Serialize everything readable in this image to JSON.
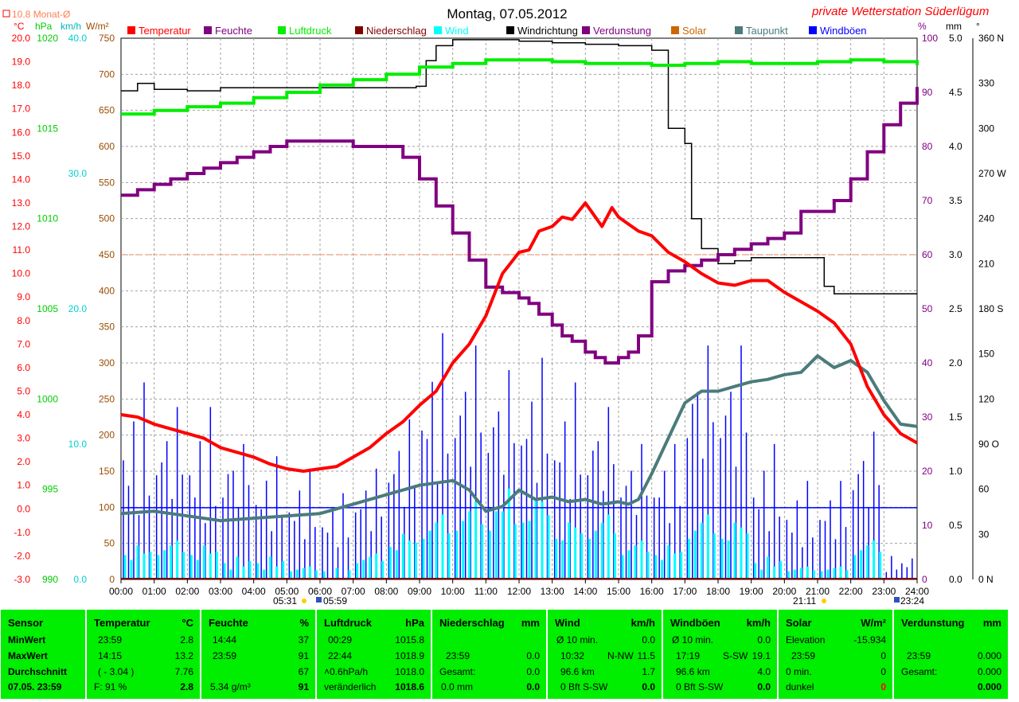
{
  "chart_data": {
    "type": "line",
    "title": "Montag, 07.05.2012",
    "station": "private Wetterstation Süderlügum",
    "monthly_avg_label": "10.8 Monat-Ø",
    "units_left": [
      "°C",
      "hPa",
      "km/h",
      "W/m²"
    ],
    "units_right": [
      "%",
      "mm",
      "°"
    ],
    "x_ticks": [
      "00:00",
      "01:00",
      "02:00",
      "03:00",
      "04:00",
      "05:00",
      "06:00",
      "07:00",
      "08:00",
      "09:00",
      "10:00",
      "11:00",
      "12:00",
      "13:00",
      "14:00",
      "15:00",
      "16:00",
      "17:00",
      "18:00",
      "19:00",
      "20:00",
      "21:00",
      "22:00",
      "23:00",
      "24:00"
    ],
    "sunrise": "05:31",
    "sunset": "21:11",
    "moonrise": "05:59",
    "moonset": "23:24",
    "axes": {
      "temp": {
        "min": -3,
        "max": 20,
        "step": 1,
        "color": "#ff0000"
      },
      "pressure": {
        "min": 990,
        "max": 1020,
        "step": 5,
        "color": "#00cc00"
      },
      "wind": {
        "min": 0,
        "max": 40,
        "step": 10,
        "color": "#00e5e5"
      },
      "solar": {
        "min": 0,
        "max": 750,
        "step": 50,
        "color": "#994c00"
      },
      "humidity": {
        "min": 0,
        "max": 100,
        "step": 10,
        "color": "#800080"
      },
      "precip": {
        "min": 0,
        "max": 5,
        "step": 0.5,
        "color": "#000000"
      },
      "direction": {
        "min": 0,
        "max": 360,
        "step": 30,
        "color": "#000000",
        "labels": {
          "0": "0 N",
          "90": "90 O",
          "180": "180 S",
          "270": "270 W",
          "360": "360 N"
        }
      }
    },
    "legend": [
      {
        "name": "Temperatur",
        "color": "#ff0000"
      },
      {
        "name": "Feuchte",
        "color": "#800080"
      },
      {
        "name": "Luftdruck",
        "color": "#00ee00"
      },
      {
        "name": "Niederschlag",
        "color": "#800000"
      },
      {
        "name": "Wind",
        "color": "#00ffff"
      },
      {
        "name": "Windrichtung",
        "color": "#000000"
      },
      {
        "name": "Verdunstung",
        "color": "#800080"
      },
      {
        "name": "Solar",
        "color": "#cc6600"
      },
      {
        "name": "Taupunkt",
        "color": "#4b7b7b"
      },
      {
        "name": "Windböen",
        "color": "#0000ff"
      }
    ],
    "monthly_avg_temp": 10.8,
    "series": [
      {
        "name": "Temperatur",
        "axis": "temp",
        "color": "#ff0000",
        "x": [
          0,
          0.5,
          1,
          1.5,
          2,
          2.5,
          3,
          3.5,
          4,
          4.5,
          5,
          5.5,
          6,
          6.5,
          7,
          7.5,
          8,
          8.5,
          9,
          9.5,
          10,
          10.5,
          11,
          11.5,
          12,
          12.3,
          12.6,
          13,
          13.3,
          13.6,
          14,
          14.2,
          14.5,
          14.8,
          15,
          15.3,
          15.6,
          16,
          16.5,
          17,
          17.5,
          18,
          18.5,
          19,
          19.5,
          20,
          20.5,
          21,
          21.5,
          22,
          22.5,
          23,
          23.5,
          24
        ],
        "values": [
          4.0,
          3.9,
          3.6,
          3.4,
          3.2,
          3.0,
          2.6,
          2.4,
          2.2,
          1.9,
          1.7,
          1.6,
          1.7,
          1.8,
          2.2,
          2.6,
          3.2,
          3.7,
          4.4,
          5.0,
          6.2,
          7.0,
          8.2,
          10.0,
          10.9,
          11.0,
          11.8,
          12.0,
          12.4,
          12.3,
          13.0,
          12.6,
          12.0,
          12.8,
          12.4,
          12.1,
          11.8,
          11.6,
          10.9,
          10.5,
          10.0,
          9.6,
          9.5,
          9.7,
          9.7,
          9.2,
          8.8,
          8.4,
          7.9,
          7.0,
          5.2,
          4.0,
          3.2,
          2.8
        ]
      },
      {
        "name": "Feuchte",
        "axis": "humidity",
        "color": "#800080",
        "x": [
          0,
          0.5,
          1,
          1.5,
          2,
          2.5,
          3,
          3.5,
          4,
          4.5,
          5,
          5.5,
          6,
          6.5,
          7,
          7.5,
          8,
          8.5,
          9,
          9.5,
          10,
          10.5,
          11,
          11.5,
          12,
          12.3,
          12.6,
          13,
          13.3,
          13.6,
          14,
          14.3,
          14.6,
          15,
          15.3,
          15.6,
          16,
          16.5,
          17,
          17.5,
          18,
          18.5,
          19,
          19.5,
          20,
          20.5,
          21,
          21.5,
          22,
          22.5,
          23,
          23.5,
          24
        ],
        "values": [
          71,
          72,
          73,
          74,
          75,
          76,
          77,
          78,
          79,
          80,
          81,
          81,
          81,
          81,
          80,
          80,
          80,
          78,
          74,
          69,
          64,
          59,
          54,
          53,
          52,
          51,
          49,
          47,
          45,
          44,
          42,
          41,
          40,
          41,
          42,
          45,
          55,
          57,
          58,
          59,
          60,
          61,
          62,
          63,
          64,
          68,
          68,
          70,
          74,
          79,
          84,
          88,
          91
        ]
      },
      {
        "name": "Luftdruck",
        "axis": "pressure",
        "color": "#00ee00",
        "x": [
          0,
          1,
          2,
          3,
          4,
          5,
          6,
          7,
          8,
          9,
          10,
          11,
          12,
          13,
          14,
          15,
          16,
          17,
          18,
          19,
          20,
          21,
          22,
          23,
          24
        ],
        "values": [
          1015.8,
          1016.0,
          1016.2,
          1016.4,
          1016.7,
          1017.0,
          1017.4,
          1017.7,
          1018.0,
          1018.4,
          1018.6,
          1018.8,
          1018.8,
          1018.7,
          1018.6,
          1018.6,
          1018.5,
          1018.6,
          1018.7,
          1018.6,
          1018.6,
          1018.7,
          1018.8,
          1018.7,
          1018.5
        ]
      },
      {
        "name": "Taupunkt",
        "axis": "temp",
        "color": "#4b7b7b",
        "x": [
          0,
          1,
          2,
          3,
          4,
          5,
          6,
          7,
          8,
          9,
          10,
          10.5,
          11,
          11.5,
          12,
          12.5,
          13,
          13.5,
          14,
          14.5,
          15,
          15.3,
          15.6,
          16,
          16.5,
          17,
          17.5,
          18,
          18.5,
          19,
          19.5,
          20,
          20.5,
          21,
          21.5,
          22,
          22.5,
          23,
          23.5,
          24
        ],
        "values": [
          -0.2,
          -0.1,
          -0.3,
          -0.5,
          -0.4,
          -0.3,
          -0.2,
          0.2,
          0.6,
          1.0,
          1.2,
          0.8,
          -0.1,
          0.1,
          0.8,
          0.4,
          0.5,
          0.3,
          0.4,
          0.2,
          0.3,
          0.2,
          0.4,
          1.5,
          3.0,
          4.5,
          5.0,
          5.0,
          5.2,
          5.4,
          5.5,
          5.7,
          5.8,
          6.5,
          6.0,
          6.3,
          5.8,
          4.6,
          3.6,
          3.5
        ]
      },
      {
        "name": "Windrichtung",
        "axis": "direction",
        "color": "#000000",
        "x": [
          0,
          0.5,
          1,
          2,
          3,
          5,
          8.9,
          9.2,
          9.5,
          10,
          11,
          12,
          13,
          14,
          15,
          16,
          16.5,
          17,
          17.2,
          17.5,
          18,
          18.5,
          19,
          20,
          21,
          21.2,
          21.5,
          22,
          23,
          24
        ],
        "values": [
          325,
          330,
          326,
          325,
          327,
          327,
          328,
          345,
          355,
          359,
          359,
          358,
          357,
          356,
          355,
          352,
          300,
          290,
          240,
          220,
          210,
          212,
          214,
          214,
          214,
          195,
          190,
          190,
          190,
          190
        ]
      },
      {
        "name": "Windböen",
        "axis": "wind",
        "color": "#0000ff",
        "x": [
          0,
          1,
          2,
          3,
          4,
          5,
          6,
          7,
          8,
          9,
          10,
          11,
          12,
          13,
          14,
          15,
          16,
          17,
          18,
          19,
          20,
          21,
          22,
          23,
          24
        ],
        "values": [
          8,
          10,
          7,
          9,
          6,
          5,
          4,
          6,
          9,
          12,
          14,
          13,
          12,
          10,
          11,
          8,
          7,
          15,
          14,
          6,
          4,
          5,
          9,
          2,
          1
        ],
        "peak_values": [
          16,
          14,
          14,
          11,
          10,
          9,
          7,
          9,
          13,
          20,
          19,
          17,
          18,
          16,
          14,
          11,
          11,
          19,
          19,
          11,
          8,
          8,
          12,
          1,
          1
        ]
      },
      {
        "name": "Wind",
        "axis": "wind",
        "color": "#00ffff",
        "x": [
          0,
          1,
          2,
          3,
          4,
          5,
          6,
          7,
          8,
          9,
          10,
          11,
          12,
          13,
          14,
          15,
          16,
          17,
          18,
          19,
          20,
          21,
          22,
          23,
          24
        ],
        "values": [
          2,
          3,
          2,
          1,
          1,
          1,
          0,
          2,
          3,
          5,
          6,
          7,
          6,
          4,
          5,
          3,
          2,
          5,
          4,
          1,
          1,
          1,
          3,
          0,
          0
        ],
        "peak_values": [
          3,
          3,
          3,
          2,
          2,
          1,
          1,
          2,
          4,
          5,
          6,
          6,
          7,
          5,
          5,
          3,
          3,
          5,
          5,
          2,
          1,
          1,
          3,
          0,
          0
        ]
      },
      {
        "name": "Durchschnitt Wind",
        "axis": "wind",
        "color": "#0000ff",
        "x": [
          0,
          24
        ],
        "values": [
          5.3,
          5.3
        ]
      }
    ]
  },
  "sensors": {
    "row_labels": [
      "Sensor",
      "MinWert",
      "MaxWert",
      "Durchschnitt",
      "07.05. 23:59"
    ],
    "temperatur": {
      "title": "Temperatur",
      "unit": "°C",
      "min": {
        "time": "23:59",
        "value": "2.8"
      },
      "max": {
        "time": "14:15",
        "value": "13.2"
      },
      "avg": {
        "note": "( - 3.04 )",
        "value": "7.76"
      },
      "current": {
        "note": "F: 91 %",
        "value": "2.8"
      }
    },
    "feuchte": {
      "title": "Feuchte",
      "unit": "%",
      "min": {
        "time": "14:44",
        "value": "37"
      },
      "max": {
        "time": "23:59",
        "value": "91"
      },
      "avg": {
        "value": "67"
      },
      "current": {
        "note": "5.34 g/m³",
        "value": "91"
      }
    },
    "luftdruck": {
      "title": "Luftdruck",
      "unit": "hPa",
      "min": {
        "time": "00:29",
        "value": "1015.8"
      },
      "max": {
        "time": "22:44",
        "value": "1018.9"
      },
      "avg": {
        "note": "˄0.6hPa/h",
        "value": "1018.0"
      },
      "current": {
        "note": "veränderlich",
        "value": "1018.6"
      }
    },
    "niederschlag": {
      "title": "Niederschlag",
      "unit": "mm",
      "max": {
        "time": "23:59",
        "value": "0.0"
      },
      "avg": {
        "note": "Gesamt:",
        "value": "0.0"
      },
      "current": {
        "note": "0.0 mm",
        "value": "0.0"
      }
    },
    "wind": {
      "title": "Wind",
      "unit": "km/h",
      "min": {
        "time": "Ø 10 min.",
        "value": "0.0"
      },
      "max": {
        "time": "10:32",
        "dir": "N-NW",
        "value": "11.5"
      },
      "avg": {
        "note": "96.6 km",
        "value": "1.7"
      },
      "current": {
        "note": "0 Bft S-SW",
        "value": "0.0"
      }
    },
    "windboeen": {
      "title": "Windböen",
      "unit": "km/h",
      "min": {
        "time": "Ø 10 min.",
        "value": "0.0"
      },
      "max": {
        "time": "17:19",
        "dir": "S-SW",
        "value": "19.1"
      },
      "avg": {
        "note": "96.6 km",
        "value": "4.0"
      },
      "current": {
        "note": "0 Bft S-SW",
        "value": "0.0"
      }
    },
    "solar": {
      "title": "Solar",
      "unit": "W/m²",
      "min": {
        "time": "Elevation",
        "value": "-15.934"
      },
      "max": {
        "time": "23:59",
        "value": "0"
      },
      "avg": {
        "note": "0 min.",
        "value": "0"
      },
      "current": {
        "note": "dunkel",
        "value": "0"
      }
    },
    "verdunstung": {
      "title": "Verdunstung",
      "unit": "mm",
      "max": {
        "time": "23:59",
        "value": "0.000"
      },
      "avg": {
        "note": "Gesamt:",
        "value": "0.000"
      },
      "current": {
        "value": "0.000"
      }
    }
  }
}
